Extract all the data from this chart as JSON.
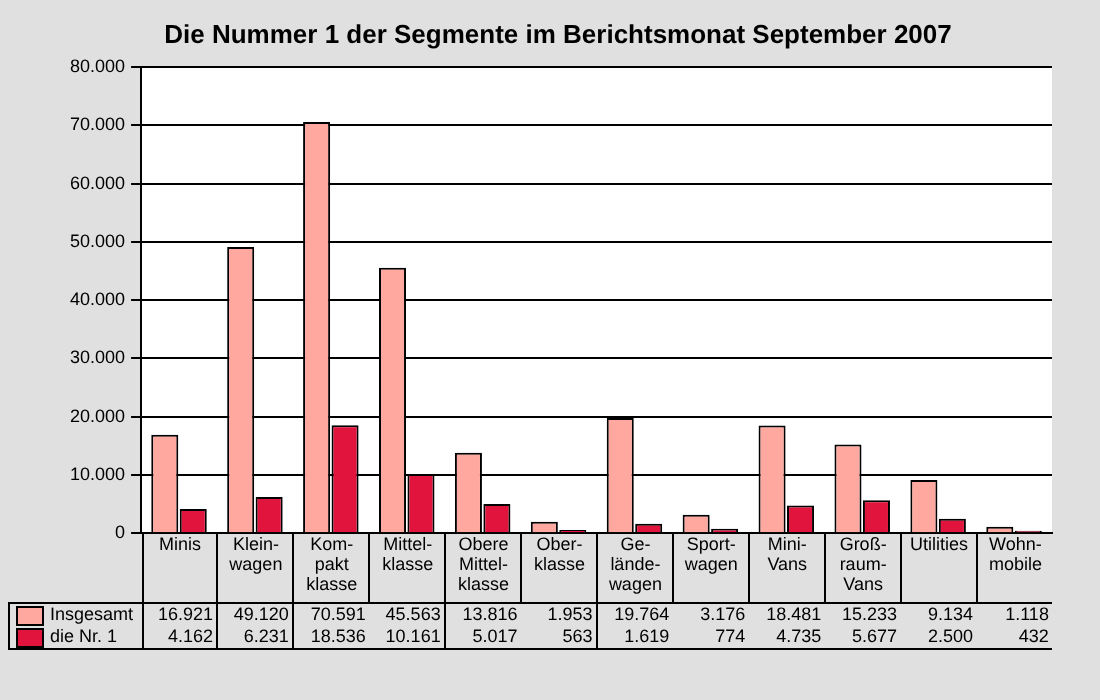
{
  "chart_data": {
    "type": "bar",
    "title": "Die Nummer 1 der Segmente im Berichtsmonat September 2007",
    "categories": [
      "Minis",
      "Klein-\nwagen",
      "Kom-\npakt\nklasse",
      "Mittel-\nklasse",
      "Obere\nMittel-\nklasse",
      "Ober-\nklasse",
      "Ge-\nlände-\nwagen",
      "Sport-\nwagen",
      "Mini-\nVans",
      "Groß-\nraum-\nVans",
      "Utilities",
      "Wohn-\nmobile"
    ],
    "series": [
      {
        "name": "Insgesamt",
        "color": "#ffa8a0",
        "values": [
          16921,
          49120,
          70591,
          45563,
          13816,
          1953,
          19764,
          3176,
          18481,
          15233,
          9134,
          1118
        ],
        "value_labels": [
          "16.921",
          "49.120",
          "70.591",
          "45.563",
          "13.816",
          "1.953",
          "19.764",
          "3.176",
          "18.481",
          "15.233",
          "9.134",
          "1.118"
        ]
      },
      {
        "name": "die Nr. 1",
        "color": "#e0143c",
        "values": [
          4162,
          6231,
          18536,
          10161,
          5017,
          563,
          1619,
          774,
          4735,
          5677,
          2500,
          432
        ],
        "value_labels": [
          "4.162",
          "6.231",
          "18.536",
          "10.161",
          "5.017",
          "563",
          "1.619",
          "774",
          "4.735",
          "5.677",
          "2.500",
          "432"
        ]
      }
    ],
    "ylim": [
      0,
      80000
    ],
    "yticks": [
      {
        "value": 0,
        "label": "0"
      },
      {
        "value": 10000,
        "label": "10.000"
      },
      {
        "value": 20000,
        "label": "20.000"
      },
      {
        "value": 30000,
        "label": "30.000"
      },
      {
        "value": 40000,
        "label": "40.000"
      },
      {
        "value": 50000,
        "label": "50.000"
      },
      {
        "value": 60000,
        "label": "60.000"
      },
      {
        "value": 70000,
        "label": "70.000"
      },
      {
        "value": 80000,
        "label": "80.000"
      }
    ],
    "grid": "y",
    "legend": "bottom"
  }
}
